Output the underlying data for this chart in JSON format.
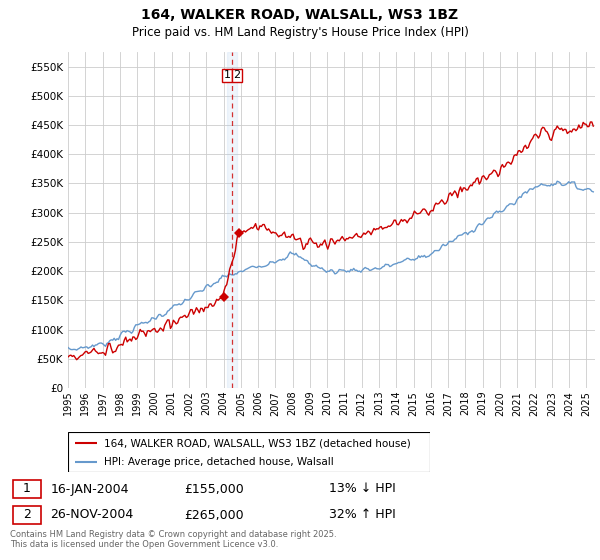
{
  "title": "164, WALKER ROAD, WALSALL, WS3 1BZ",
  "subtitle": "Price paid vs. HM Land Registry's House Price Index (HPI)",
  "ylabel_ticks": [
    "£0",
    "£50K",
    "£100K",
    "£150K",
    "£200K",
    "£250K",
    "£300K",
    "£350K",
    "£400K",
    "£450K",
    "£500K",
    "£550K"
  ],
  "ytick_values": [
    0,
    50000,
    100000,
    150000,
    200000,
    250000,
    300000,
    350000,
    400000,
    450000,
    500000,
    550000
  ],
  "ylim": [
    0,
    575000
  ],
  "xlim_start": 1995.0,
  "xlim_end": 2025.5,
  "transaction1_date": 2004.04,
  "transaction1_price": 155000,
  "transaction1_label": "1",
  "transaction2_date": 2004.91,
  "transaction2_price": 265000,
  "transaction2_label": "2",
  "vline_x": 2004.5,
  "red_color": "#cc0000",
  "blue_color": "#6699cc",
  "vline_color": "#cc0000",
  "vline_fill": "#ddeeff",
  "grid_color": "#cccccc",
  "bg_color": "#ffffff",
  "legend_line1": "164, WALKER ROAD, WALSALL, WS3 1BZ (detached house)",
  "legend_line2": "HPI: Average price, detached house, Walsall",
  "table_row1": [
    "1",
    "16-JAN-2004",
    "£155,000",
    "13% ↓ HPI"
  ],
  "table_row2": [
    "2",
    "26-NOV-2004",
    "£265,000",
    "32% ↑ HPI"
  ],
  "footnote": "Contains HM Land Registry data © Crown copyright and database right 2025.\nThis data is licensed under the Open Government Licence v3.0.",
  "xtick_years": [
    1995,
    1996,
    1997,
    1998,
    1999,
    2000,
    2001,
    2002,
    2003,
    2004,
    2005,
    2006,
    2007,
    2008,
    2009,
    2010,
    2011,
    2012,
    2013,
    2014,
    2015,
    2016,
    2017,
    2018,
    2019,
    2020,
    2021,
    2022,
    2023,
    2024,
    2025
  ]
}
